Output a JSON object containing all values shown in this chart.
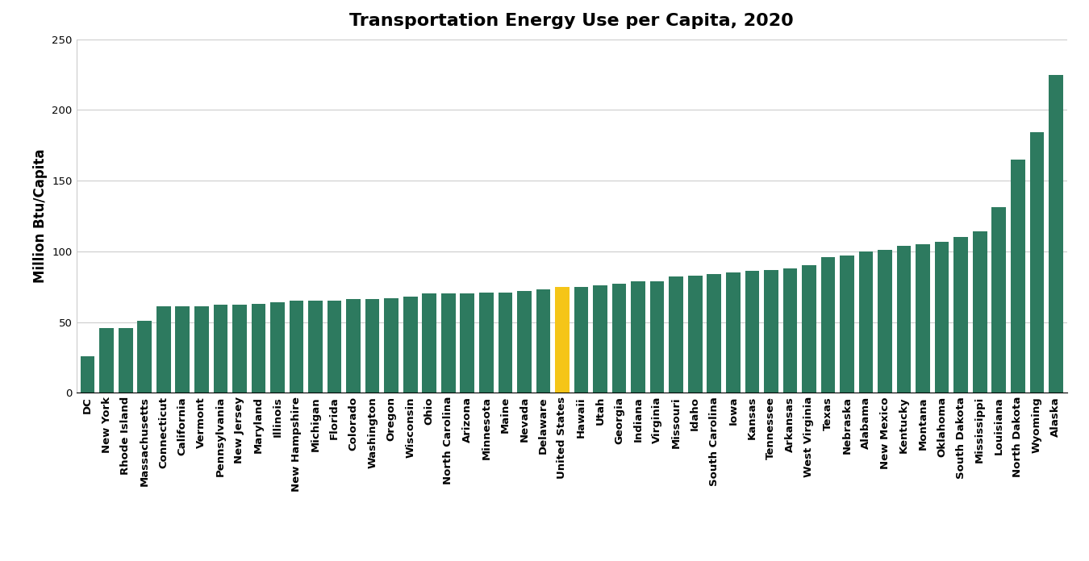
{
  "title": "Transportation Energy Use per Capita, 2020",
  "ylabel": "Million Btu/Capita",
  "categories": [
    "DC",
    "New York",
    "Rhode Island",
    "Massachusetts",
    "Connecticut",
    "California",
    "Vermont",
    "Pennsylvania",
    "New Jersey",
    "Maryland",
    "Illinois",
    "New Hampshire",
    "Michigan",
    "Florida",
    "Colorado",
    "Washington",
    "Oregon",
    "Wisconsin",
    "Ohio",
    "North Carolina",
    "Arizona",
    "Minnesota",
    "Maine",
    "Nevada",
    "Delaware",
    "United States",
    "Hawaii",
    "Utah",
    "Georgia",
    "Indiana",
    "Virginia",
    "Missouri",
    "Idaho",
    "South Carolina",
    "Iowa",
    "Kansas",
    "Tennessee",
    "Arkansas",
    "West Virginia",
    "Texas",
    "Nebraska",
    "Alabama",
    "New Mexico",
    "Kentucky",
    "Montana",
    "Oklahoma",
    "South Dakota",
    "Mississippi",
    "Louisiana",
    "North Dakota",
    "Wyoming",
    "Alaska"
  ],
  "values": [
    26,
    46,
    46,
    51,
    61,
    61,
    61,
    62,
    62,
    63,
    64,
    65,
    65,
    65,
    66,
    66,
    67,
    68,
    70,
    70,
    70,
    71,
    71,
    72,
    73,
    75,
    75,
    76,
    77,
    79,
    79,
    82,
    83,
    84,
    85,
    86,
    87,
    88,
    90,
    96,
    97,
    100,
    101,
    104,
    105,
    107,
    110,
    114,
    131,
    165,
    184,
    225
  ],
  "bar_color_default": "#2d7a5f",
  "bar_color_highlight": "#f5c518",
  "highlight_index": 25,
  "ylim": [
    0,
    250
  ],
  "yticks": [
    0,
    50,
    100,
    150,
    200,
    250
  ],
  "background_color": "#ffffff",
  "grid_color": "#cccccc",
  "title_fontsize": 16,
  "axis_label_fontsize": 12,
  "tick_fontsize": 9.5
}
